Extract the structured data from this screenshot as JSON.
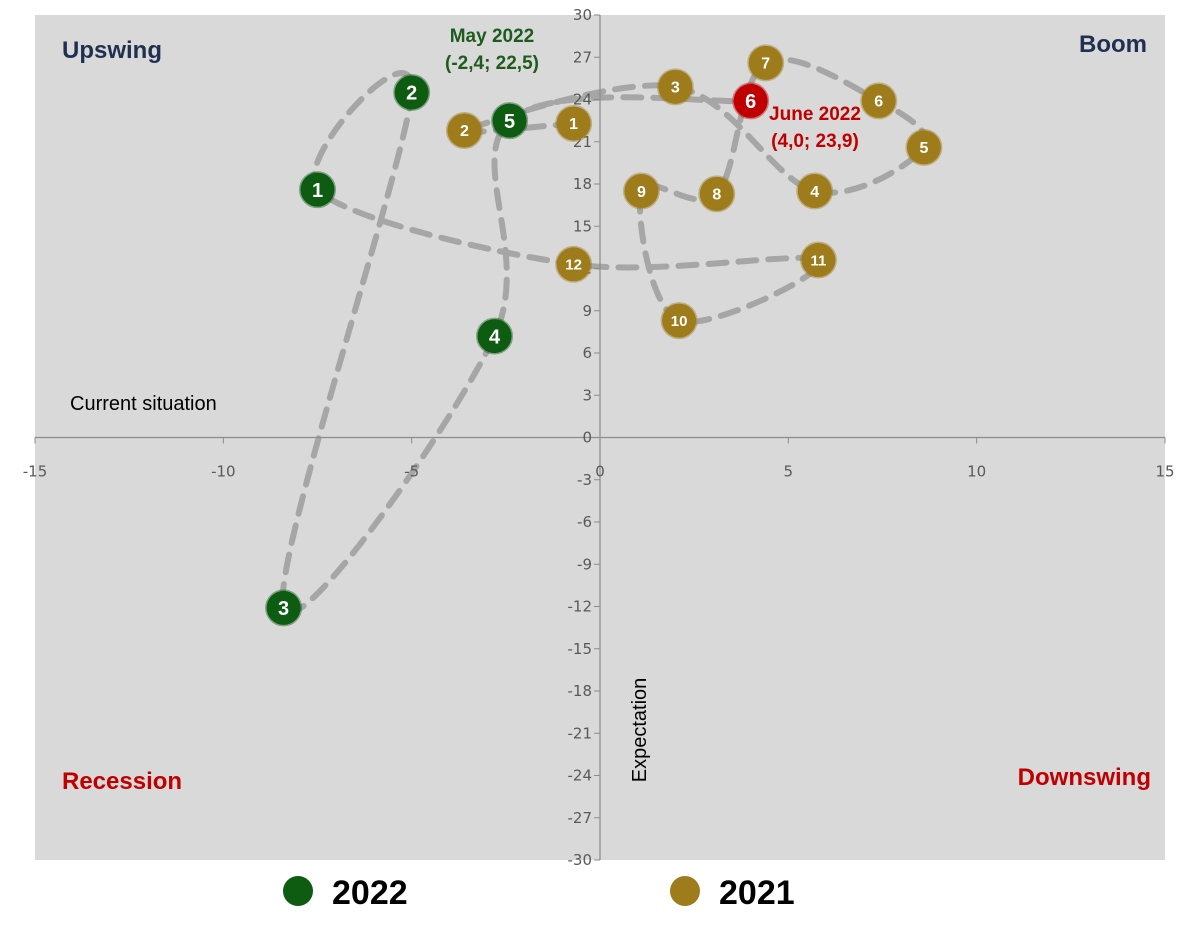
{
  "chart_data": {
    "type": "scatter",
    "x_axis": {
      "label": "Current situation",
      "range": [
        -15,
        15
      ],
      "ticks": [
        "-15",
        "-10",
        "-5",
        "0",
        "5",
        "10",
        "15"
      ]
    },
    "y_axis": {
      "label": "Expectation",
      "range": [
        -30,
        30
      ],
      "ticks": [
        "-30",
        "-27",
        "-24",
        "-21",
        "-18",
        "-15",
        "-12",
        "-9",
        "-6",
        "-3",
        "0",
        "3",
        "6",
        "9",
        "12",
        "15",
        "18",
        "21",
        "24",
        "27",
        "30"
      ]
    },
    "quadrants": {
      "top_left": "Upswing",
      "top_right": "Boom",
      "bottom_left": "Recession",
      "bottom_right": "Downswing"
    },
    "series": [
      {
        "name": "2021",
        "color": "#9e7c1c",
        "points": [
          {
            "label": "1",
            "x": -0.7,
            "y": 22.3
          },
          {
            "label": "2",
            "x": -3.6,
            "y": 21.8
          },
          {
            "label": "3",
            "x": 2.0,
            "y": 24.9
          },
          {
            "label": "4",
            "x": 5.7,
            "y": 17.5
          },
          {
            "label": "5",
            "x": 8.6,
            "y": 20.6
          },
          {
            "label": "6",
            "x": 7.4,
            "y": 23.9
          },
          {
            "label": "7",
            "x": 4.4,
            "y": 26.6
          },
          {
            "label": "8",
            "x": 3.1,
            "y": 17.3
          },
          {
            "label": "9",
            "x": 1.1,
            "y": 17.5
          },
          {
            "label": "10",
            "x": 2.1,
            "y": 8.3
          },
          {
            "label": "11",
            "x": 5.8,
            "y": 12.6
          },
          {
            "label": "12",
            "x": -0.7,
            "y": 12.3
          }
        ]
      },
      {
        "name": "2022",
        "color": "#0d5c12",
        "points": [
          {
            "label": "1",
            "x": -7.5,
            "y": 17.6
          },
          {
            "label": "2",
            "x": -5.0,
            "y": 24.5
          },
          {
            "label": "3",
            "x": -8.4,
            "y": -12.1
          },
          {
            "label": "4",
            "x": -2.8,
            "y": 7.2
          },
          {
            "label": "5",
            "x": -2.4,
            "y": 22.5
          },
          {
            "label": "6",
            "x": 4.0,
            "y": 23.9
          }
        ]
      }
    ],
    "path_order": [
      [
        "2021",
        "1"
      ],
      [
        "2021",
        "2"
      ],
      [
        "2021",
        "3"
      ],
      [
        "2021",
        "4"
      ],
      [
        "2021",
        "5"
      ],
      [
        "2021",
        "6"
      ],
      [
        "2021",
        "7"
      ],
      [
        "2021",
        "8"
      ],
      [
        "2021",
        "9"
      ],
      [
        "2021",
        "10"
      ],
      [
        "2021",
        "11"
      ],
      [
        "2021",
        "12"
      ],
      [
        "2022",
        "1"
      ],
      [
        "2022",
        "2"
      ],
      [
        "2022",
        "3"
      ],
      [
        "2022",
        "4"
      ],
      [
        "2022",
        "5"
      ],
      [
        "2022",
        "6"
      ]
    ],
    "highlight": {
      "series": "2022",
      "label": "6",
      "color": "#c00000"
    },
    "annotations": [
      {
        "lines": [
          "May 2022",
          "(-2,4; 22,5)"
        ],
        "color": "#1e5c1e"
      },
      {
        "lines": [
          "June 2022",
          "(4,0; 23,9)"
        ],
        "color": "#c00000"
      }
    ],
    "legend": {
      "placement": "bottom",
      "items": [
        {
          "label": "2022",
          "color": "#0d5c12"
        },
        {
          "label": "2021",
          "color": "#9e7c1c"
        }
      ]
    },
    "colors": {
      "plot_background": "#d9d9d9",
      "path": "#a6a6a6",
      "upswing_boom_text": "#1f3050",
      "recession_downswing_text": "#c00000"
    }
  }
}
